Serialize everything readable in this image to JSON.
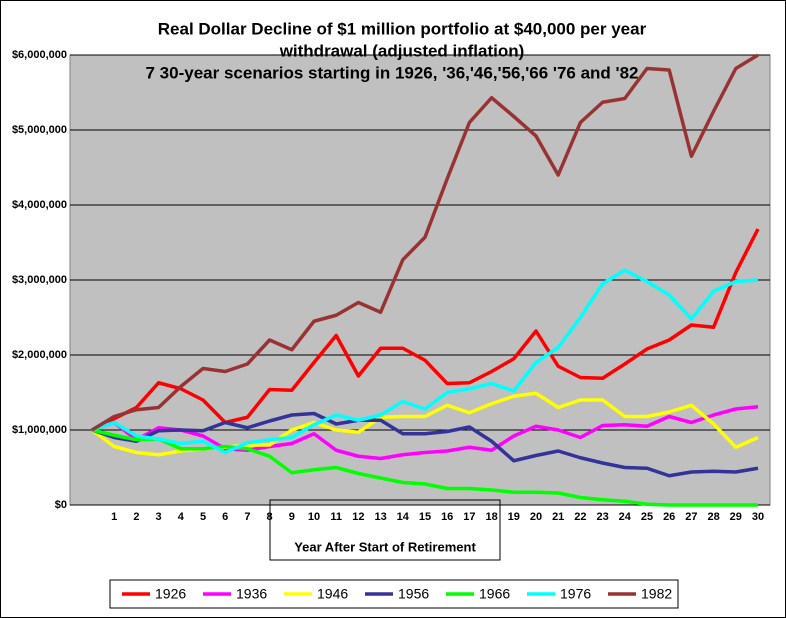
{
  "chart_data": {
    "type": "line",
    "title": [
      "Real Dollar Decline of $1 million portfolio at $40,000 per year",
      "withdrawal (adjusted inflation)"
    ],
    "subtitle": "7 30-year scenarios starting in 1926, '36,'46,'56,'66 '76 and '82",
    "x_label": "Year After Start of Retirement",
    "categories": [
      null,
      1,
      2,
      3,
      4,
      5,
      6,
      7,
      8,
      9,
      10,
      11,
      12,
      13,
      14,
      15,
      16,
      17,
      18,
      19,
      20,
      21,
      22,
      23,
      24,
      25,
      26,
      27,
      28,
      29,
      30
    ],
    "ylim": [
      0,
      6000000
    ],
    "yticks": [
      {
        "value": 0,
        "label": "$0"
      },
      {
        "value": 1000000,
        "label": "$1,000,000"
      },
      {
        "value": 2000000,
        "label": "$2,000,000"
      },
      {
        "value": 3000000,
        "label": "$3,000,000"
      },
      {
        "value": 4000000,
        "label": "$4,000,000"
      },
      {
        "value": 5000000,
        "label": "$5,000,000"
      },
      {
        "value": 6000000,
        "label": "$6,000,000"
      }
    ],
    "grid": true,
    "legend": "bottom",
    "series": [
      {
        "name": "1926",
        "color": "#ff0000",
        "values": [
          1000000,
          1150000,
          1300000,
          1630000,
          1550000,
          1400000,
          1100000,
          1170000,
          1540000,
          1530000,
          1900000,
          2260000,
          1720000,
          2090000,
          2090000,
          1930000,
          1620000,
          1630000,
          1780000,
          1950000,
          2320000,
          1850000,
          1700000,
          1690000,
          1880000,
          2080000,
          2200000,
          2400000,
          2370000,
          3100000,
          3680000
        ]
      },
      {
        "name": "1936",
        "color": "#ff00ff",
        "values": [
          1000000,
          1100000,
          870000,
          1030000,
          1000000,
          920000,
          750000,
          730000,
          780000,
          820000,
          950000,
          730000,
          650000,
          620000,
          670000,
          700000,
          720000,
          770000,
          730000,
          920000,
          1050000,
          1000000,
          900000,
          1060000,
          1070000,
          1050000,
          1180000,
          1100000,
          1200000,
          1280000,
          1310000
        ]
      },
      {
        "name": "1946",
        "color": "#ffff00",
        "values": [
          1000000,
          780000,
          700000,
          670000,
          720000,
          750000,
          770000,
          800000,
          800000,
          1000000,
          1100000,
          1000000,
          970000,
          1170000,
          1180000,
          1180000,
          1330000,
          1230000,
          1350000,
          1450000,
          1490000,
          1300000,
          1400000,
          1400000,
          1180000,
          1180000,
          1240000,
          1330000,
          1080000,
          770000,
          900000
        ]
      },
      {
        "name": "1956",
        "color": "#333399",
        "values": [
          1000000,
          900000,
          850000,
          990000,
          1000000,
          990000,
          1100000,
          1030000,
          1120000,
          1200000,
          1220000,
          1080000,
          1130000,
          1130000,
          950000,
          950000,
          980000,
          1040000,
          850000,
          590000,
          660000,
          720000,
          630000,
          560000,
          500000,
          490000,
          390000,
          440000,
          450000,
          440000,
          490000
        ]
      },
      {
        "name": "1966",
        "color": "#00ff00",
        "values": [
          1000000,
          930000,
          870000,
          880000,
          750000,
          750000,
          780000,
          750000,
          650000,
          430000,
          470000,
          500000,
          420000,
          360000,
          300000,
          280000,
          220000,
          220000,
          200000,
          170000,
          170000,
          160000,
          100000,
          70000,
          50000,
          10000,
          0,
          0,
          0,
          0,
          0
        ]
      },
      {
        "name": "1976",
        "color": "#00ffff",
        "values": [
          1000000,
          1100000,
          920000,
          880000,
          820000,
          850000,
          700000,
          830000,
          870000,
          900000,
          1070000,
          1200000,
          1130000,
          1200000,
          1380000,
          1280000,
          1500000,
          1550000,
          1620000,
          1520000,
          1900000,
          2100000,
          2500000,
          2950000,
          3130000,
          2980000,
          2800000,
          2480000,
          2850000,
          2980000,
          3000000
        ]
      },
      {
        "name": "1982",
        "color": "#993333",
        "values": [
          1000000,
          1180000,
          1270000,
          1300000,
          1580000,
          1820000,
          1780000,
          1880000,
          2200000,
          2070000,
          2450000,
          2530000,
          2700000,
          2570000,
          3270000,
          3570000,
          4350000,
          5100000,
          5430000,
          5180000,
          4920000,
          4400000,
          5100000,
          5370000,
          5420000,
          5820000,
          5800000,
          4650000,
          5250000,
          5820000,
          6000000
        ]
      }
    ]
  }
}
